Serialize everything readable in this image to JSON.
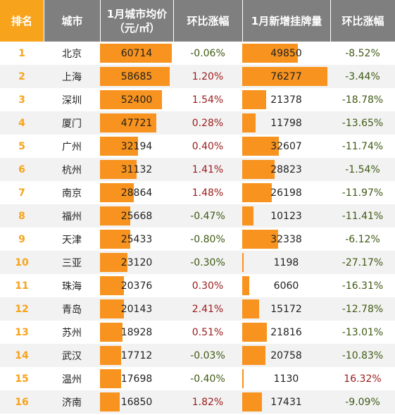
{
  "colors": {
    "header_accent": "#f7a31c",
    "header_gray": "#7f7f7f",
    "bar": "#f7931e",
    "positive": "#9b1b1b",
    "negative": "#3f5a14",
    "rank_text": "#f7a31c"
  },
  "header": {
    "rank": "排名",
    "city": "城市",
    "avg_price": "1月城市均价（元/㎡）",
    "price_mom": "环比涨幅",
    "new_listings": "1月新增挂牌量",
    "listing_mom": "环比涨幅"
  },
  "scales": {
    "price_max": 60714,
    "listing_max": 76277
  },
  "rows": [
    {
      "rank": "1",
      "city": "北京",
      "price": 60714,
      "price_label": "60714",
      "price_mom": "-0.06%",
      "price_mom_dir": "neg",
      "listings": 49850,
      "listings_label": "49850",
      "listing_mom": "-8.52%",
      "listing_mom_dir": "neg"
    },
    {
      "rank": "2",
      "city": "上海",
      "price": 58685,
      "price_label": "58685",
      "price_mom": "1.20%",
      "price_mom_dir": "pos",
      "listings": 76277,
      "listings_label": "76277",
      "listing_mom": "-3.44%",
      "listing_mom_dir": "neg"
    },
    {
      "rank": "3",
      "city": "深圳",
      "price": 52400,
      "price_label": "52400",
      "price_mom": "1.54%",
      "price_mom_dir": "pos",
      "listings": 21378,
      "listings_label": "21378",
      "listing_mom": "-18.78%",
      "listing_mom_dir": "neg"
    },
    {
      "rank": "4",
      "city": "厦门",
      "price": 47721,
      "price_label": "47721",
      "price_mom": "0.28%",
      "price_mom_dir": "pos",
      "listings": 11798,
      "listings_label": "11798",
      "listing_mom": "-13.65%",
      "listing_mom_dir": "neg"
    },
    {
      "rank": "5",
      "city": "广州",
      "price": 32194,
      "price_label": "32194",
      "price_mom": "0.40%",
      "price_mom_dir": "pos",
      "listings": 32607,
      "listings_label": "32607",
      "listing_mom": "-11.74%",
      "listing_mom_dir": "neg"
    },
    {
      "rank": "6",
      "city": "杭州",
      "price": 31132,
      "price_label": "31132",
      "price_mom": "1.41%",
      "price_mom_dir": "pos",
      "listings": 28823,
      "listings_label": "28823",
      "listing_mom": "-1.54%",
      "listing_mom_dir": "neg"
    },
    {
      "rank": "7",
      "city": "南京",
      "price": 28864,
      "price_label": "28864",
      "price_mom": "1.48%",
      "price_mom_dir": "pos",
      "listings": 26198,
      "listings_label": "26198",
      "listing_mom": "-11.97%",
      "listing_mom_dir": "neg"
    },
    {
      "rank": "8",
      "city": "福州",
      "price": 25668,
      "price_label": "25668",
      "price_mom": "-0.47%",
      "price_mom_dir": "neg",
      "listings": 10123,
      "listings_label": "10123",
      "listing_mom": "-11.41%",
      "listing_mom_dir": "neg"
    },
    {
      "rank": "9",
      "city": "天津",
      "price": 25433,
      "price_label": "25433",
      "price_mom": "-0.80%",
      "price_mom_dir": "neg",
      "listings": 32338,
      "listings_label": "32338",
      "listing_mom": "-6.12%",
      "listing_mom_dir": "neg"
    },
    {
      "rank": "10",
      "city": "三亚",
      "price": 23120,
      "price_label": "23120",
      "price_mom": "-0.30%",
      "price_mom_dir": "neg",
      "listings": 1198,
      "listings_label": "1198",
      "listing_mom": "-27.17%",
      "listing_mom_dir": "neg"
    },
    {
      "rank": "11",
      "city": "珠海",
      "price": 20376,
      "price_label": "20376",
      "price_mom": "0.30%",
      "price_mom_dir": "pos",
      "listings": 6060,
      "listings_label": "6060",
      "listing_mom": "-16.31%",
      "listing_mom_dir": "neg"
    },
    {
      "rank": "12",
      "city": "青岛",
      "price": 20143,
      "price_label": "20143",
      "price_mom": "2.41%",
      "price_mom_dir": "pos",
      "listings": 15172,
      "listings_label": "15172",
      "listing_mom": "-12.78%",
      "listing_mom_dir": "neg"
    },
    {
      "rank": "13",
      "city": "苏州",
      "price": 18928,
      "price_label": "18928",
      "price_mom": "0.51%",
      "price_mom_dir": "pos",
      "listings": 21816,
      "listings_label": "21816",
      "listing_mom": "-13.01%",
      "listing_mom_dir": "neg"
    },
    {
      "rank": "14",
      "city": "武汉",
      "price": 17712,
      "price_label": "17712",
      "price_mom": "-0.03%",
      "price_mom_dir": "neg",
      "listings": 20758,
      "listings_label": "20758",
      "listing_mom": "-10.83%",
      "listing_mom_dir": "neg"
    },
    {
      "rank": "15",
      "city": "温州",
      "price": 17698,
      "price_label": "17698",
      "price_mom": "-0.40%",
      "price_mom_dir": "neg",
      "listings": 1130,
      "listings_label": "1130",
      "listing_mom": "16.32%",
      "listing_mom_dir": "pos"
    },
    {
      "rank": "16",
      "city": "济南",
      "price": 16850,
      "price_label": "16850",
      "price_mom": "1.82%",
      "price_mom_dir": "pos",
      "listings": 17431,
      "listings_label": "17431",
      "listing_mom": "-9.09%",
      "listing_mom_dir": "neg"
    }
  ]
}
